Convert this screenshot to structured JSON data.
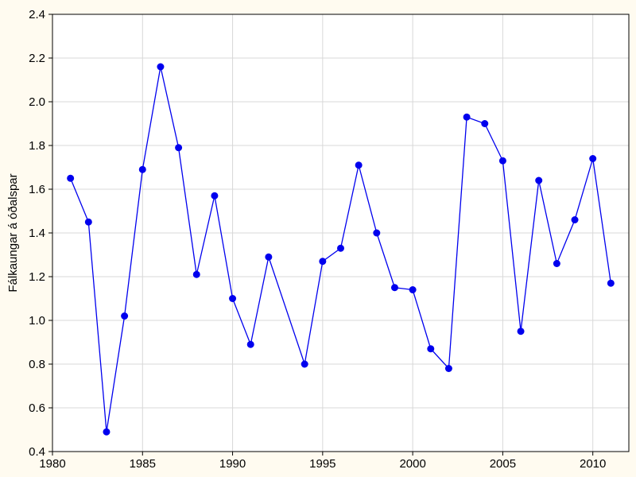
{
  "chart_data": {
    "type": "line",
    "title": "",
    "xlabel": "",
    "ylabel": "Fálkaungar á óðalspar",
    "xlim": [
      1980,
      2012
    ],
    "ylim": [
      0.4,
      2.4
    ],
    "xticks": [
      1980,
      1985,
      1990,
      1995,
      2000,
      2005,
      2010
    ],
    "yticks": [
      "0.4",
      "0.6",
      "0.8",
      "1.0",
      "1.2",
      "1.4",
      "1.6",
      "1.8",
      "2.0",
      "2.2",
      "2.4"
    ],
    "grid": true,
    "legend": "none",
    "colors": {
      "series": "#0000ee",
      "background": "#fffbf0",
      "plot": "#ffffff",
      "grid": "#d8d8d8"
    },
    "series": [
      {
        "x": [
          1981,
          1982,
          1983,
          1984,
          1985,
          1986,
          1987,
          1988,
          1989,
          1990,
          1991,
          1992,
          1994,
          1995,
          1996,
          1997,
          1998,
          1999,
          2000,
          2001,
          2002,
          2003,
          2004,
          2005,
          2006,
          2007,
          2008,
          2009,
          2010,
          2011
        ],
        "values": [
          1.65,
          1.45,
          0.49,
          1.02,
          1.69,
          2.16,
          1.79,
          1.21,
          1.57,
          1.1,
          0.89,
          1.29,
          0.8,
          1.27,
          1.33,
          1.71,
          1.4,
          1.15,
          1.14,
          0.87,
          0.78,
          1.93,
          1.9,
          1.73,
          0.95,
          1.64,
          1.26,
          1.46,
          1.74,
          1.17
        ]
      }
    ]
  }
}
